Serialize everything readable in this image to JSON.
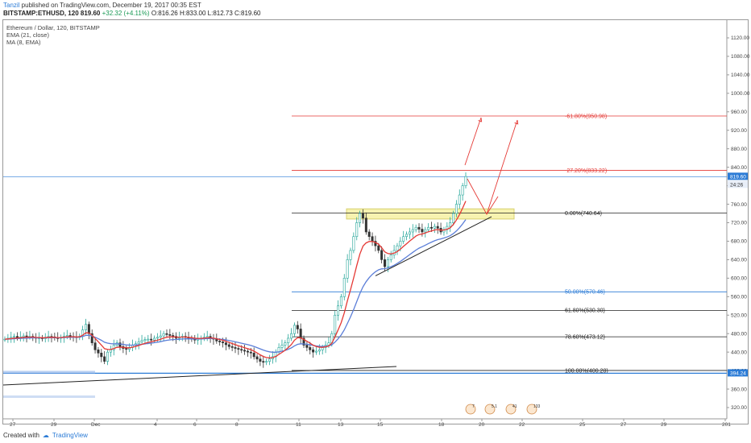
{
  "header": {
    "user": "Tanzil",
    "published": " published on TradingView.com, December 19, 2017 00:35 EST",
    "symbol": "BITSTAMP:ETHUSD, 120",
    "last": "819.60",
    "change": "+32.32 (+4.11%)",
    "ohlc": "O:816.26 H:833.00 L:812.73 C:819.60"
  },
  "legend": {
    "title": "Ethereum / Dollar, 120, BITSTAMP",
    "ema": "EMA (21, close)",
    "ma": "MA (8, EMA)"
  },
  "footer": {
    "created": "Created with",
    "brand": "TradingView"
  },
  "colors": {
    "bull": "#26a69a",
    "bear": "#333333",
    "ema": "#5b7ed8",
    "ma": "#e53935",
    "fib_red": "#e53935",
    "fib_blue": "#2b7bd6",
    "fib_black": "#222222",
    "zone": "#f7f3b0"
  },
  "chart_data": {
    "type": "candlestick",
    "price_axis": {
      "ticks": [
        1120,
        1080,
        1040,
        1000,
        960,
        920,
        880,
        840,
        800,
        760,
        720,
        680,
        640,
        600,
        560,
        520,
        480,
        440,
        400,
        360,
        320
      ],
      "range": [
        304,
        1140
      ],
      "last_label": "819.60",
      "last_sub": "24:26",
      "low_label": "394.24"
    },
    "time_axis": {
      "ticks": [
        "27",
        "29",
        "Dec",
        "4",
        "6",
        "8",
        "11",
        "13",
        "15",
        "18",
        "20",
        "22",
        "25",
        "27",
        "29",
        "201"
      ]
    },
    "fib_levels": [
      {
        "label": "-61.80%(950.98)",
        "value": 950.98,
        "color": "red"
      },
      {
        "label": "-27.20%(833.22)",
        "value": 833.22,
        "color": "red"
      },
      {
        "label": "0.00%(740.64)",
        "value": 740.64,
        "color": "black"
      },
      {
        "label": "50.00%(570.46)",
        "value": 570.46,
        "color": "blue"
      },
      {
        "label": "61.80%(530.30)",
        "value": 530.3,
        "color": "black"
      },
      {
        "label": "78.60%(473.12)",
        "value": 473.12,
        "color": "black"
      },
      {
        "label": "100.00%(400.28)",
        "value": 400.28,
        "color": "black"
      }
    ],
    "resistance_zone": [
      728,
      750
    ],
    "event_badges": [
      "7",
      "5.1",
      "41",
      "133"
    ],
    "price_path": [
      [
        468
      ],
      [
        470
      ],
      [
        472
      ],
      [
        474
      ],
      [
        471
      ],
      [
        473
      ],
      [
        475
      ],
      [
        473
      ],
      [
        474
      ],
      [
        472
      ],
      [
        470
      ],
      [
        471
      ],
      [
        469
      ],
      [
        472
      ],
      [
        474
      ],
      [
        473
      ],
      [
        471
      ],
      [
        470
      ],
      [
        472
      ],
      [
        474
      ],
      [
        476
      ],
      [
        474
      ],
      [
        473
      ],
      [
        472
      ],
      [
        474
      ],
      [
        488
      ],
      [
        500
      ],
      [
        480
      ],
      [
        460
      ],
      [
        445
      ],
      [
        438
      ],
      [
        430
      ],
      [
        420
      ],
      [
        440
      ],
      [
        445
      ],
      [
        455
      ],
      [
        460
      ],
      [
        452
      ],
      [
        448
      ],
      [
        446
      ],
      [
        450
      ],
      [
        455
      ],
      [
        458
      ],
      [
        462
      ],
      [
        465
      ],
      [
        467
      ],
      [
        468
      ],
      [
        466
      ],
      [
        470
      ],
      [
        472
      ],
      [
        475
      ],
      [
        480
      ],
      [
        478
      ],
      [
        476
      ],
      [
        474
      ],
      [
        470
      ],
      [
        472
      ],
      [
        474
      ],
      [
        472
      ],
      [
        470
      ],
      [
        468
      ],
      [
        466
      ],
      [
        468
      ],
      [
        470
      ],
      [
        472
      ],
      [
        474
      ],
      [
        470
      ],
      [
        468
      ],
      [
        464
      ],
      [
        462
      ],
      [
        460
      ],
      [
        456
      ],
      [
        452
      ],
      [
        450
      ],
      [
        448
      ],
      [
        446
      ],
      [
        444
      ],
      [
        442
      ],
      [
        440
      ],
      [
        438
      ],
      [
        430
      ],
      [
        425
      ],
      [
        420
      ],
      [
        418
      ],
      [
        420
      ],
      [
        425
      ],
      [
        430
      ],
      [
        440
      ],
      [
        450
      ],
      [
        455
      ],
      [
        460
      ],
      [
        470
      ],
      [
        480
      ],
      [
        498
      ],
      [
        490
      ],
      [
        470
      ],
      [
        455
      ],
      [
        450
      ],
      [
        445
      ],
      [
        440
      ],
      [
        442
      ],
      [
        445
      ],
      [
        450
      ],
      [
        455
      ],
      [
        460
      ],
      [
        480
      ],
      [
        520
      ],
      [
        540
      ],
      [
        560
      ],
      [
        600
      ],
      [
        640
      ],
      [
        660
      ],
      [
        690
      ],
      [
        720
      ],
      [
        740
      ],
      [
        730
      ],
      [
        700
      ],
      [
        690
      ],
      [
        680
      ],
      [
        670
      ],
      [
        660
      ],
      [
        640
      ],
      [
        625
      ],
      [
        640
      ],
      [
        650
      ],
      [
        660
      ],
      [
        670
      ],
      [
        680
      ],
      [
        690
      ],
      [
        695
      ],
      [
        700
      ],
      [
        705
      ],
      [
        710
      ],
      [
        706
      ],
      [
        700
      ],
      [
        705
      ],
      [
        710
      ],
      [
        708
      ],
      [
        712
      ],
      [
        708
      ],
      [
        700
      ],
      [
        705
      ],
      [
        712
      ],
      [
        720
      ],
      [
        740
      ],
      [
        760
      ],
      [
        780
      ],
      [
        800
      ],
      [
        820
      ]
    ]
  }
}
